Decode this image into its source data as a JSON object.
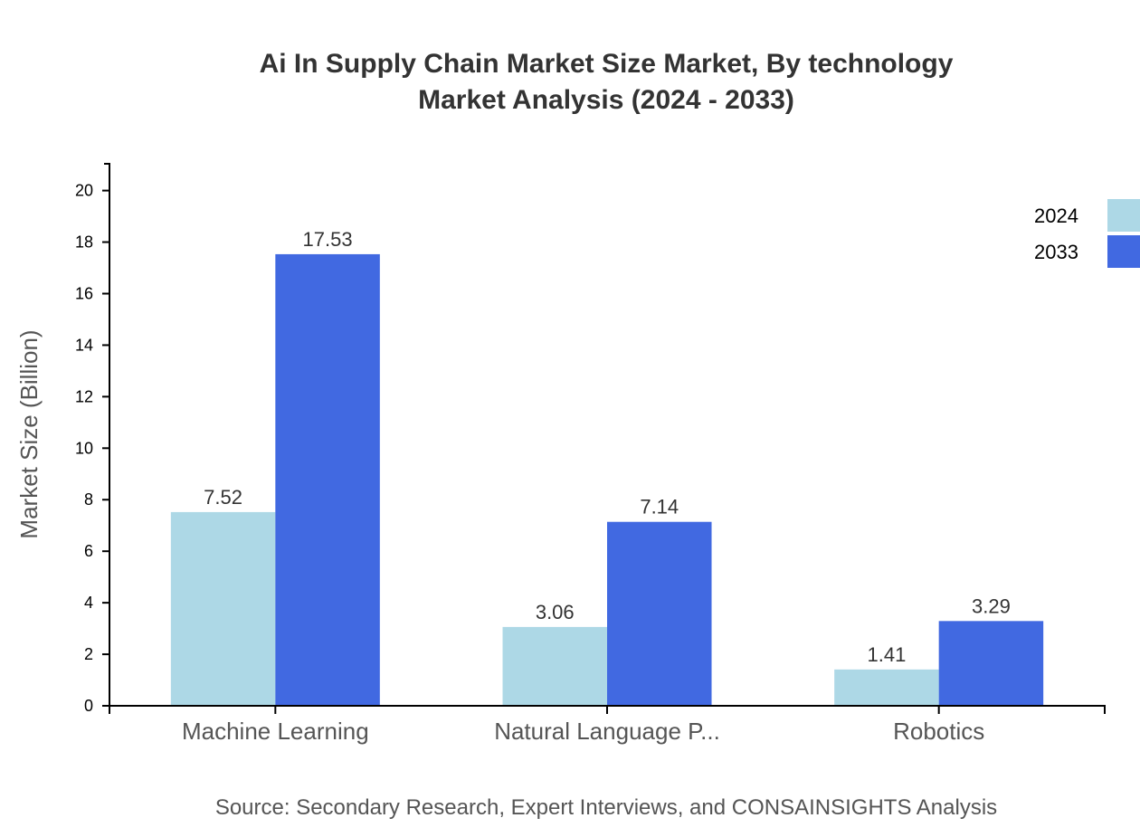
{
  "chart_data": {
    "type": "bar",
    "title": [
      "Ai In Supply Chain Market Size Market, By technology",
      "Market Analysis (2024 - 2033)"
    ],
    "xlabel": "",
    "ylabel": "Market Size (Billion)",
    "categories": [
      "Machine Learning",
      "Natural Language P...",
      "Robotics"
    ],
    "series": [
      {
        "name": "2024",
        "values": [
          7.52,
          3.06,
          1.41
        ],
        "color": "#add8e6"
      },
      {
        "name": "2033",
        "values": [
          17.53,
          7.14,
          3.29
        ],
        "color": "#4169e1"
      }
    ],
    "data_labels": [
      [
        "7.52",
        "3.06",
        "1.41"
      ],
      [
        "17.53",
        "7.14",
        "3.29"
      ]
    ],
    "ylim": [
      0,
      21.04
    ],
    "yticks": [
      0,
      2,
      4,
      6,
      8,
      10,
      12,
      14,
      16,
      18,
      20
    ],
    "grid": false,
    "legend_position": "top-right"
  },
  "source": "Source: Secondary Research, Expert Interviews, and CONSAINSIGHTS Analysis"
}
